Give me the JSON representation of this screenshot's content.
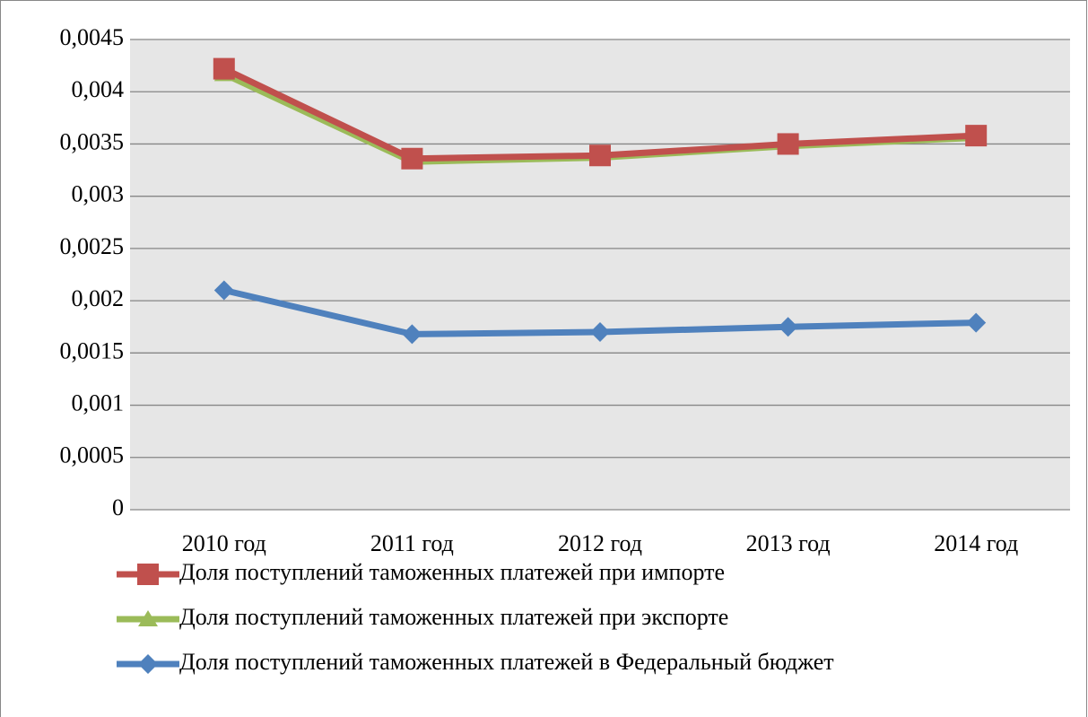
{
  "chart_data": {
    "type": "line",
    "categories": [
      "2010 год",
      "2011 год",
      "2012 год",
      "2013 год",
      "2014 год"
    ],
    "series": [
      {
        "name": "Доля поступлений таможенных платежей при импорте",
        "color": "#c0504d",
        "marker": "square",
        "values": [
          0.00422,
          0.00336,
          0.00339,
          0.0035,
          0.00358
        ]
      },
      {
        "name": "Доля поступлений таможенных платежей при экспорте",
        "color": "#9bbb59",
        "marker": "triangle",
        "values": [
          0.00417,
          0.00333,
          0.00337,
          0.00348,
          0.00356
        ]
      },
      {
        "name": "Доля поступлений таможенных платежей в Федеральный бюджет",
        "color": "#4f81bd",
        "marker": "diamond",
        "values": [
          0.0021,
          0.00168,
          0.0017,
          0.00175,
          0.00179
        ]
      }
    ],
    "ylim": [
      0,
      0.0045
    ],
    "yticks": [
      0,
      {
        "value": 0.0005,
        "label": "0,0005"
      },
      {
        "value": 0.001,
        "label": "0,001"
      },
      {
        "value": 0.0015,
        "label": "0,0015"
      },
      {
        "value": 0.002,
        "label": "0,002"
      },
      {
        "value": 0.0025,
        "label": "0,0025"
      },
      {
        "value": 0.003,
        "label": "0,003"
      },
      {
        "value": 0.0035,
        "label": "0,0035"
      },
      {
        "value": 0.004,
        "label": "0,004"
      },
      {
        "value": 0.0045,
        "label": "0,0045"
      }
    ],
    "grid": true,
    "legend": "bottom"
  }
}
